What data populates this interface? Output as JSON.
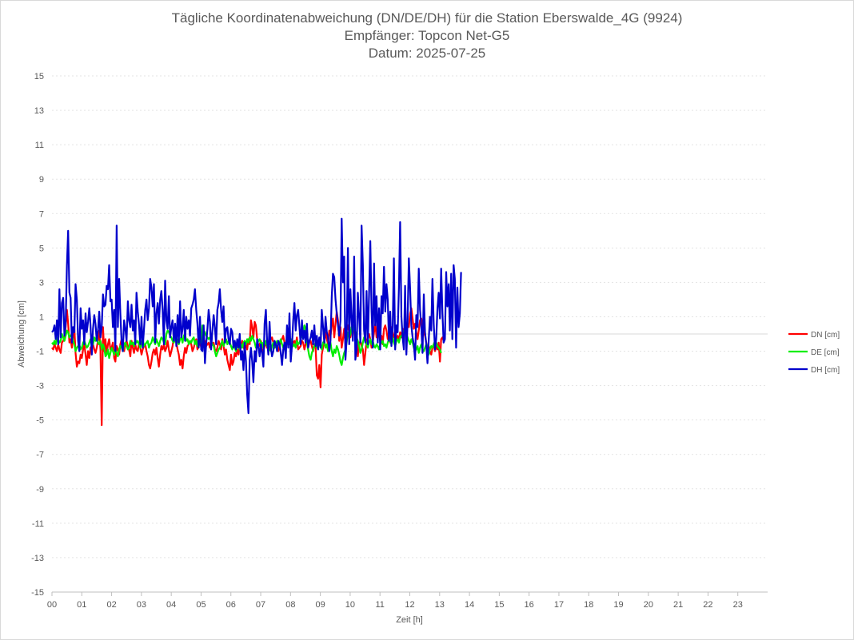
{
  "chart_data": {
    "type": "line",
    "title": "Tägliche Koordinatenabweichung (DN/DE/DH) für die Station Eberswalde_4G (9924)",
    "subtitle_1": "Empfänger: Topcon Net-G5",
    "subtitle_2": "Datum: 2025-07-25",
    "xlabel": "Zeit [h]",
    "ylabel": "Abweichung [cm]",
    "xlim": [
      0,
      24
    ],
    "ylim": [
      -15,
      15
    ],
    "x_tick_labels": [
      "00",
      "01",
      "02",
      "03",
      "04",
      "05",
      "06",
      "07",
      "08",
      "09",
      "10",
      "11",
      "12",
      "13",
      "14",
      "15",
      "16",
      "17",
      "18",
      "19",
      "20",
      "21",
      "22",
      "23"
    ],
    "y_ticks": [
      15,
      13,
      11,
      9,
      7,
      5,
      3,
      1,
      -1,
      -3,
      -5,
      -7,
      -9,
      -11,
      -13,
      -15
    ],
    "grid": "horizontal dotted",
    "legend_position": "right",
    "x_step_hours": 0.0417,
    "series": [
      {
        "name": "DN [cm]",
        "color": "#ff0000",
        "values": [
          -0.8,
          -0.9,
          -0.6,
          -0.8,
          -1.0,
          -0.6,
          -0.9,
          -1.1,
          -0.5,
          -0.4,
          -0.2,
          0.4,
          1.4,
          0.6,
          -0.5,
          -0.3,
          -0.8,
          -0.2,
          0.3,
          -1.1,
          -1.9,
          -1.6,
          -1.7,
          -1.2,
          -1.4,
          -0.9,
          -0.6,
          -1.2,
          -1.8,
          -1.0,
          -1.4,
          -0.8,
          -0.7,
          -0.6,
          -0.9,
          -1.1,
          -0.8,
          -0.4,
          0.2,
          -0.9,
          -5.3,
          0.4,
          -1.0,
          -0.3,
          -1.2,
          -0.6,
          -0.3,
          -0.9,
          -0.8,
          -0.5,
          -1.4,
          -1.6,
          -0.7,
          -0.9,
          -1.2,
          -0.6,
          -0.3,
          -0.8,
          -1.0,
          -0.6,
          -0.4,
          -0.7,
          -0.9,
          -1.3,
          -0.4,
          -0.8,
          -1.1,
          -0.6,
          -0.9,
          -1.0,
          -0.5,
          -0.8,
          -1.2,
          -0.9,
          -0.7,
          -0.6,
          -1.0,
          -1.3,
          -1.8,
          -2.0,
          -1.6,
          -1.1,
          -0.9,
          -1.2,
          -0.8,
          -1.4,
          -1.9,
          -1.2,
          -0.7,
          -0.9,
          -0.6,
          -1.0,
          -0.8,
          -0.4,
          -0.9,
          -1.3,
          -1.0,
          -0.7,
          -0.2,
          0.3,
          -0.5,
          -0.9,
          -1.2,
          -1.8,
          -1.5,
          -2.0,
          -1.3,
          -0.8,
          -1.1,
          -0.7,
          -0.6,
          -0.4,
          -0.6,
          -1.0,
          -0.8,
          -0.5,
          -0.3,
          -0.9,
          -0.7,
          -0.4,
          -0.8,
          -0.6,
          -0.5,
          -0.4,
          -0.7,
          -0.6,
          -0.5,
          -0.8,
          -0.4,
          -0.6,
          -0.5,
          -0.9,
          -1.0,
          -0.8,
          -0.4,
          -0.6,
          -0.9,
          -0.3,
          -0.7,
          -1.2,
          -0.9,
          -1.5,
          -1.8,
          -2.1,
          -1.2,
          -1.8,
          -1.6,
          -1.1,
          -1.3,
          -0.9,
          -1.2,
          -0.6,
          -0.8,
          -0.4,
          -0.7,
          -1.0,
          -0.5,
          -0.9,
          -0.3,
          -0.6,
          0.8,
          0.4,
          -0.2,
          0.7,
          0.5,
          -0.3,
          -0.8,
          -0.6,
          -0.4,
          -0.9,
          -1.0,
          -0.7,
          -0.5,
          -0.8,
          -0.4,
          -0.6,
          -0.3,
          -0.2,
          -0.5,
          -0.8,
          -0.6,
          -0.9,
          -1.0,
          -0.7,
          -0.4,
          -0.3,
          -0.1,
          -0.5,
          -0.7,
          -0.2,
          -0.4,
          -0.6,
          -0.3,
          -0.8,
          -0.5,
          -0.4,
          -0.6,
          -0.2,
          -0.9,
          -0.8,
          -0.7,
          -0.4,
          -0.5,
          -0.9,
          -0.6,
          -0.3,
          -0.8,
          -0.5,
          -0.4,
          -0.7,
          -1.0,
          -0.6,
          -0.8,
          -2.4,
          -2.6,
          -1.8,
          -3.1,
          -1.2,
          -0.8,
          -0.4,
          0.1,
          -0.3,
          -0.6,
          0.2,
          -0.1,
          0.5,
          0.9,
          -0.2,
          0.6,
          1.3,
          0.8,
          -0.4,
          0.4,
          -0.8,
          -0.3,
          0.3,
          -0.6,
          0.2,
          0.5,
          0.1,
          -0.2,
          0.4,
          0.3,
          0.5,
          -0.3,
          -0.1,
          -1.3,
          -0.6,
          -0.4,
          -0.7,
          -0.9,
          -1.8,
          -1.1,
          -0.4,
          -0.2,
          0.0,
          -0.3,
          -0.8,
          -0.5,
          0.1,
          0.6,
          -0.2,
          0.4,
          0.0,
          -0.4,
          -0.1,
          -0.6,
          0.3,
          0.5,
          0.2,
          -0.3,
          -0.1,
          -0.5,
          0.4,
          0.1,
          -0.2,
          0.0,
          -0.3,
          -0.1,
          -0.4,
          0.1,
          -0.2,
          0.3,
          -0.1,
          0.5,
          0.2,
          0.6,
          0.4,
          1.2,
          1.5,
          0.9,
          0.3,
          0.6,
          0.1,
          -0.3,
          0.2,
          0.8,
          0.9,
          0.6,
          0.1,
          -0.1,
          -0.5,
          -0.9,
          -0.7,
          -1.0,
          -1.2,
          -0.8,
          -0.6,
          -1.0,
          -0.7,
          -0.9,
          -0.5,
          -1.6,
          -0.3,
          -0.2,
          -0.4,
          -0.3
        ]
      },
      {
        "name": "DE [cm]",
        "color": "#00ee00",
        "values": [
          -0.5,
          -0.6,
          -0.4,
          -0.6,
          -0.2,
          -0.3,
          -0.5,
          -0.4,
          0.0,
          -0.2,
          -0.4,
          -0.1,
          0.2,
          0.1,
          -0.2,
          -0.1,
          0.0,
          -0.4,
          -0.6,
          -1.0,
          -0.8,
          -0.7,
          -0.6,
          -0.9,
          -0.8,
          -0.5,
          -0.4,
          -0.6,
          -0.8,
          -0.7,
          -0.5,
          -0.3,
          -0.7,
          -0.6,
          -0.2,
          -0.4,
          -0.1,
          -0.5,
          -0.6,
          -0.4,
          -0.9,
          -0.6,
          -0.8,
          -1.3,
          -1.2,
          -0.9,
          -1.4,
          -1.1,
          -0.8,
          -1.0,
          -1.2,
          -0.9,
          -1.1,
          -1.3,
          -0.9,
          -0.7,
          -0.8,
          -1.0,
          -0.6,
          -0.5,
          -0.7,
          -0.9,
          -0.8,
          -0.4,
          -0.6,
          -0.5,
          -0.7,
          -0.3,
          -0.5,
          -0.4,
          -0.6,
          -0.8,
          -0.5,
          -0.3,
          -0.7,
          -0.6,
          -0.5,
          -0.4,
          -0.8,
          -0.6,
          -0.5,
          -0.2,
          -0.4,
          -0.6,
          -0.3,
          -0.5,
          -0.7,
          -0.4,
          -0.2,
          -0.3,
          -0.5,
          -0.6,
          0.0,
          0.2,
          0.1,
          -0.1,
          -0.2,
          -0.4,
          -0.5,
          -0.3,
          -0.2,
          -0.4,
          -0.6,
          -0.3,
          -0.2,
          -0.5,
          -0.1,
          0.0,
          -0.4,
          -0.3,
          -0.6,
          -0.4,
          -0.5,
          -0.3,
          -0.2,
          -0.6,
          -0.4,
          -0.7,
          -0.5,
          -0.3,
          -0.6,
          0.5,
          0.2,
          0.1,
          -0.1,
          -0.2,
          -0.3,
          -0.2,
          -0.4,
          -0.6,
          -0.7,
          -1.0,
          -1.3,
          -1.1,
          -0.9,
          -0.8,
          -0.6,
          -0.4,
          -0.7,
          -0.5,
          -0.3,
          -0.6,
          -0.4,
          -0.5,
          -0.7,
          -0.9,
          -0.6,
          -0.8,
          -1.0,
          -0.7,
          -0.5,
          -0.9,
          -0.6,
          -0.8,
          -0.5,
          -0.4,
          -0.6,
          -0.3,
          -0.5,
          -0.2,
          -0.4,
          -0.1,
          -0.3,
          -0.5,
          -0.8,
          -0.6,
          -0.4,
          -0.3,
          -0.6,
          -0.5,
          -0.8,
          -0.6,
          -0.4,
          -0.7,
          -0.5,
          -0.9,
          -1.0,
          -0.7,
          -0.5,
          -0.8,
          -0.6,
          -0.4,
          -0.6,
          -0.5,
          -0.3,
          -0.6,
          -0.8,
          -0.9,
          -0.7,
          -0.5,
          -0.6,
          -0.4,
          -0.3,
          -0.5,
          -0.7,
          -0.6,
          -0.8,
          -0.4,
          -0.6,
          -0.5,
          -0.3,
          -0.1,
          0.1,
          0.5,
          0.3,
          -0.5,
          -0.9,
          -1.3,
          -1.5,
          -1.1,
          -0.9,
          -0.7,
          -0.5,
          -0.8,
          -0.6,
          -0.4,
          -0.6,
          -0.9,
          -0.5,
          -0.4,
          -0.8,
          -0.6,
          -1.0,
          -0.7,
          -0.5,
          -1.0,
          -1.3,
          -0.9,
          -1.1,
          -0.7,
          -0.9,
          -1.2,
          -1.6,
          -1.8,
          -1.4,
          -1.1,
          -0.9,
          -0.5,
          0.1,
          -0.2,
          0.0,
          0.4,
          0.6,
          0.3,
          0.1,
          -0.2,
          -0.4,
          -0.7,
          -1.1,
          -0.9,
          -0.5,
          -0.2,
          -0.4,
          -0.6,
          -0.8,
          -0.5,
          -0.3,
          -0.6,
          -0.4,
          -0.7,
          -0.8,
          -0.6,
          -0.7,
          -0.9,
          -0.6,
          -0.5,
          -0.4,
          -0.7,
          -0.6,
          -0.8,
          -0.5,
          -0.3,
          -0.4,
          -0.6,
          -0.2,
          -0.5,
          -0.7,
          -0.4,
          -0.3,
          -0.5,
          -0.2,
          -0.1,
          0.0,
          0.2,
          0.3,
          0.1,
          -0.2,
          -0.4,
          -0.6,
          -0.3,
          -0.5,
          -0.8,
          -1.0,
          -0.9,
          -0.7,
          -1.1,
          -0.8,
          -0.6,
          -0.9,
          -1.0,
          -0.8,
          -0.6,
          -0.7,
          -1.2,
          -0.9,
          -0.7,
          -0.8,
          -0.6,
          -0.4,
          -0.5,
          -0.7,
          -0.8,
          -0.9,
          -1.1
        ]
      },
      {
        "name": "DH [cm]",
        "color": "#0000cc",
        "values": [
          0.1,
          0.2,
          0.5,
          -0.3,
          0.8,
          -0.6,
          2.6,
          -0.2,
          1.8,
          2.1,
          -0.1,
          0.6,
          4.0,
          6.0,
          2.4,
          2.1,
          -0.5,
          0.4,
          0.1,
          2.9,
          2.0,
          -0.4,
          -1.0,
          1.5,
          0.3,
          0.8,
          -0.6,
          1.2,
          0.1,
          0.7,
          1.5,
          0.5,
          -1.2,
          0.3,
          1.1,
          0.6,
          -0.4,
          0.2,
          1.3,
          -0.2,
          0.4,
          2.3,
          1.6,
          1.7,
          2.8,
          2.6,
          4.0,
          1.9,
          2.0,
          0.4,
          1.4,
          -1.0,
          6.3,
          0.4,
          3.2,
          1.2,
          -0.5,
          -1.0,
          0.8,
          0.3,
          -0.4,
          1.9,
          0.8,
          0.4,
          1.7,
          0.2,
          0.8,
          -0.6,
          2.4,
          1.3,
          0.5,
          -0.6,
          1.0,
          -0.8,
          0.3,
          1.4,
          2.0,
          0.8,
          1.5,
          3.2,
          2.7,
          1.6,
          2.9,
          -0.5,
          1.2,
          1.8,
          0.6,
          2.0,
          2.5,
          1.4,
          -0.6,
          3.1,
          0.8,
          0.3,
          2.2,
          -0.2,
          0.4,
          0.8,
          -0.4,
          0.6,
          -0.7,
          1.1,
          -0.5,
          1.9,
          -0.2,
          0.3,
          1.4,
          -0.4,
          1.0,
          0.3,
          0.8,
          -0.1,
          1.5,
          1.7,
          2.0,
          2.6,
          1.4,
          0.6,
          -0.8,
          1.0,
          -0.9,
          -1.0,
          0.5,
          -1.7,
          -0.6,
          0.3,
          1.4,
          0.7,
          -0.9,
          0.2,
          1.1,
          0.4,
          -0.6,
          1.4,
          1.8,
          2.6,
          1.4,
          0.7,
          1.6,
          -0.5,
          0.3,
          0.4,
          -0.3,
          -0.6,
          0.3,
          0.1,
          -0.8,
          -0.4,
          -0.9,
          -0.3,
          -0.8,
          0.0,
          -1.5,
          -1.0,
          -2.1,
          -0.5,
          -1.6,
          -3.5,
          -4.6,
          -1.5,
          -0.8,
          -1.6,
          -2.8,
          -1.0,
          -1.6,
          -0.3,
          -0.7,
          -1.3,
          -0.6,
          -1.1,
          -1.9,
          0.6,
          1.4,
          -0.4,
          -1.2,
          0.7,
          -0.8,
          -1.3,
          -1.0,
          -0.4,
          -0.6,
          -1.0,
          -0.4,
          -0.6,
          -1.1,
          -1.8,
          -0.9,
          -0.5,
          -1.4,
          0.5,
          -0.8,
          1.2,
          -1.6,
          -0.7,
          0.8,
          1.8,
          0.2,
          1.1,
          1.4,
          0.4,
          -0.6,
          0.8,
          -0.3,
          0.2,
          -0.5,
          0.6,
          -0.8,
          -0.4,
          -0.2,
          0.2,
          -0.6,
          0.5,
          -0.7,
          -0.1,
          -0.9,
          -0.2,
          -0.8,
          1.4,
          0.4,
          -0.5,
          1.0,
          0.1,
          -0.2,
          -1.0,
          -0.4,
          2.2,
          3.5,
          3.3,
          2.0,
          1.2,
          0.5,
          -0.1,
          0.8,
          6.7,
          3.0,
          4.5,
          -1.5,
          -0.3,
          5.0,
          -0.6,
          2.6,
          0.8,
          -0.4,
          4.5,
          -1.5,
          -0.9,
          2.4,
          1.0,
          -0.5,
          6.3,
          4.0,
          0.2,
          -0.5,
          2.5,
          -0.6,
          2.2,
          5.4,
          1.3,
          -0.8,
          4.1,
          0.5,
          2.2,
          -0.5,
          1.5,
          -0.9,
          2.2,
          1.2,
          3.9,
          1.3,
          2.9,
          2.0,
          -0.4,
          1.3,
          -0.7,
          0.4,
          4.4,
          -0.9,
          0.5,
          0.1,
          2.7,
          6.5,
          1.0,
          -0.2,
          -0.9,
          2.8,
          -1.2,
          0.7,
          4.4,
          2.6,
          0.5,
          -0.2,
          -0.6,
          -1.5,
          1.1,
          0.4,
          3.8,
          1.4,
          0.4,
          -1.1,
          2.3,
          0.1,
          -0.6,
          -1.7,
          -0.3,
          1.0,
          0.2,
          3.2,
          0.6,
          -0.9,
          -0.3,
          1.5,
          2.4,
          0.9,
          3.8,
          1.2,
          -0.5,
          -0.3,
          3.6,
          1.6,
          2.9,
          0.2,
          3.5,
          -0.3,
          4.0,
          3.2,
          -0.8,
          2.7,
          0.4,
          1.2,
          3.6
        ]
      }
    ]
  }
}
